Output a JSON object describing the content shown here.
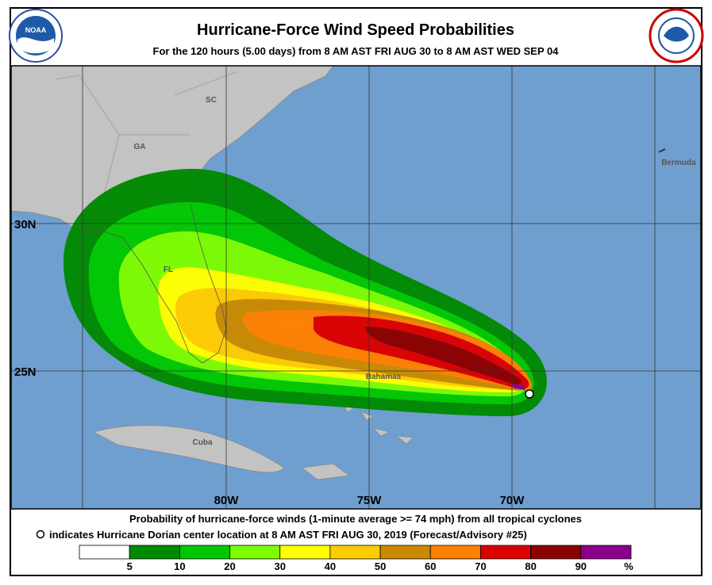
{
  "header": {
    "title": "Hurricane-Force Wind Speed Probabilities",
    "subtitle": "For the 120 hours (5.00 days) from 8 AM AST FRI AUG 30 to 8 AM AST WED SEP 04"
  },
  "logos": {
    "noaa": "NOAA"
  },
  "map": {
    "places": [
      "SC",
      "GA",
      "FL",
      "Bermuda",
      "Cuba",
      "Bahamas"
    ],
    "grid_labels": [
      "30N",
      "25N",
      "80W",
      "75W",
      "70W"
    ]
  },
  "caption": {
    "line1": "Probability of hurricane-force winds (1-minute average >= 74 mph) from all tropical cyclones",
    "line2": "indicates Hurricane Dorian center location at 8 AM AST FRI AUG 30, 2019 (Forecast/Advisory #25)"
  },
  "legend": {
    "colors": [
      "#ffffff",
      "#008a00",
      "#00c800",
      "#7dfc00",
      "#ffff00",
      "#ffcc00",
      "#c98a00",
      "#ff8000",
      "#dc0000",
      "#8b0000",
      "#8b008b"
    ],
    "ticks": [
      5,
      10,
      20,
      30,
      40,
      50,
      60,
      70,
      80,
      90
    ],
    "unit": "%"
  }
}
